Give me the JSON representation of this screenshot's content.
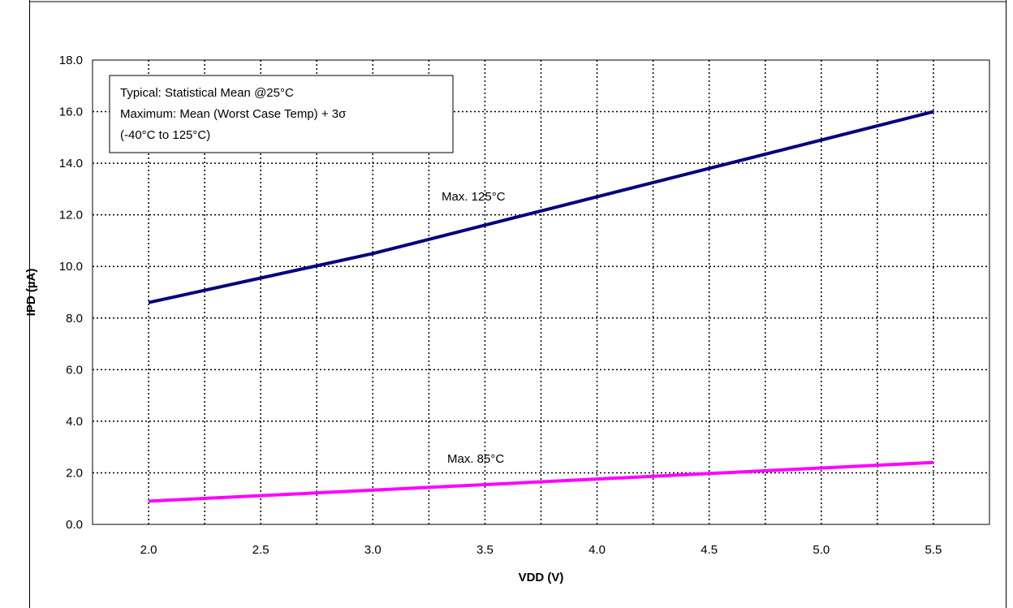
{
  "chart_data": {
    "type": "line",
    "xlabel": "VDD (V)",
    "ylabel": "IPD (µA)",
    "xlim": [
      1.75,
      5.75
    ],
    "ylim": [
      0,
      18
    ],
    "x_ticks": [
      "2.0",
      "2.5",
      "3.0",
      "3.5",
      "4.0",
      "4.5",
      "5.0",
      "5.5"
    ],
    "y_ticks": [
      "0.0",
      "2.0",
      "4.0",
      "6.0",
      "8.0",
      "10.0",
      "12.0",
      "14.0",
      "16.0",
      "18.0"
    ],
    "grid": true,
    "legend": {
      "lines": [
        "Typical: Statistical Mean @25°C",
        "Maximum: Mean (Worst Case Temp) + 3σ",
        "(-40°C to 125°C)"
      ],
      "placement": "top-left"
    },
    "series": [
      {
        "name": "Max. 125°C",
        "color": "#000080",
        "x": [
          2.0,
          3.0,
          5.5
        ],
        "y": [
          8.6,
          10.5,
          16.0
        ]
      },
      {
        "name": "Max. 85°C",
        "color": "#ff00ff",
        "x": [
          2.0,
          5.5
        ],
        "y": [
          0.9,
          2.4
        ]
      }
    ]
  }
}
